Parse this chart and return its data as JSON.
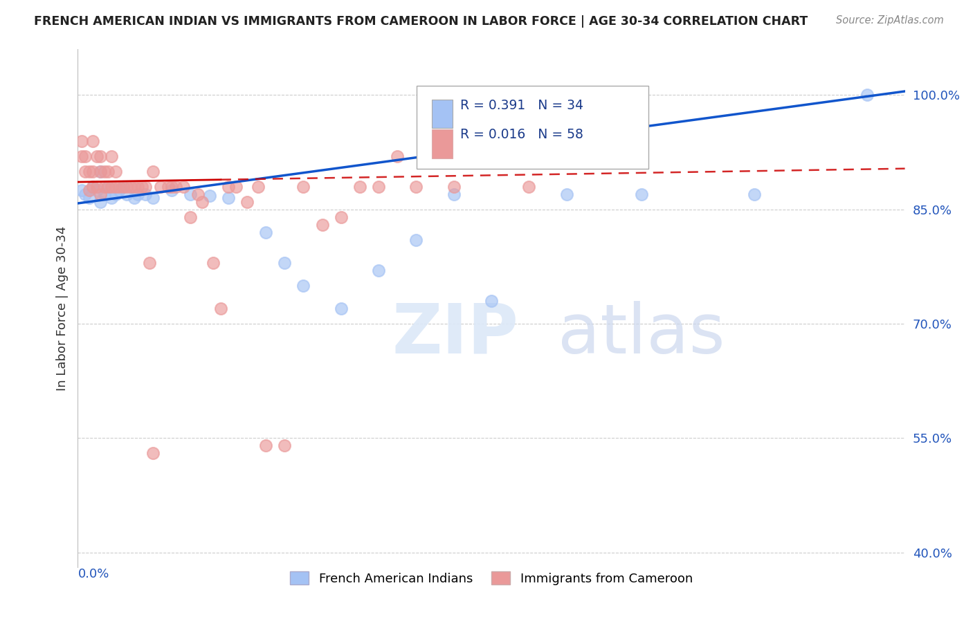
{
  "title": "FRENCH AMERICAN INDIAN VS IMMIGRANTS FROM CAMEROON IN LABOR FORCE | AGE 30-34 CORRELATION CHART",
  "source": "Source: ZipAtlas.com",
  "ylabel": "In Labor Force | Age 30-34",
  "xlim": [
    0.0,
    0.22
  ],
  "ylim": [
    0.38,
    1.06
  ],
  "yticks": [
    0.4,
    0.55,
    0.7,
    0.85,
    1.0
  ],
  "yticklabels": [
    "40.0%",
    "55.0%",
    "70.0%",
    "85.0%",
    "100.0%"
  ],
  "blue_R": "0.391",
  "blue_N": "34",
  "pink_R": "0.016",
  "pink_N": "58",
  "legend_label_blue": "French American Indians",
  "legend_label_pink": "Immigrants from Cameroon",
  "blue_color": "#a4c2f4",
  "pink_color": "#ea9999",
  "blue_line_color": "#1155cc",
  "pink_line_color": "#cc0000",
  "blue_x": [
    0.001,
    0.002,
    0.003,
    0.004,
    0.005,
    0.006,
    0.006,
    0.007,
    0.008,
    0.009,
    0.01,
    0.011,
    0.012,
    0.013,
    0.015,
    0.016,
    0.018,
    0.02,
    0.025,
    0.03,
    0.035,
    0.04,
    0.05,
    0.055,
    0.06,
    0.07,
    0.08,
    0.09,
    0.1,
    0.11,
    0.13,
    0.15,
    0.18,
    0.21
  ],
  "blue_y": [
    0.875,
    0.87,
    0.865,
    0.88,
    0.875,
    0.86,
    0.9,
    0.87,
    0.88,
    0.865,
    0.87,
    0.875,
    0.88,
    0.87,
    0.865,
    0.87,
    0.87,
    0.865,
    0.875,
    0.87,
    0.868,
    0.865,
    0.82,
    0.78,
    0.75,
    0.72,
    0.77,
    0.81,
    0.87,
    0.73,
    0.87,
    0.87,
    0.87,
    1.0
  ],
  "pink_x": [
    0.001,
    0.001,
    0.002,
    0.002,
    0.003,
    0.003,
    0.004,
    0.004,
    0.004,
    0.005,
    0.005,
    0.006,
    0.006,
    0.006,
    0.007,
    0.007,
    0.008,
    0.008,
    0.009,
    0.009,
    0.01,
    0.01,
    0.011,
    0.012,
    0.013,
    0.014,
    0.015,
    0.016,
    0.017,
    0.018,
    0.019,
    0.02,
    0.022,
    0.024,
    0.026,
    0.028,
    0.03,
    0.033,
    0.036,
    0.04,
    0.045,
    0.05,
    0.06,
    0.07,
    0.08,
    0.09,
    0.1,
    0.12,
    0.02,
    0.025,
    0.032,
    0.038,
    0.042,
    0.048,
    0.055,
    0.065,
    0.075,
    0.085
  ],
  "pink_y": [
    0.92,
    0.94,
    0.9,
    0.92,
    0.875,
    0.9,
    0.88,
    0.9,
    0.94,
    0.88,
    0.92,
    0.87,
    0.9,
    0.92,
    0.88,
    0.9,
    0.88,
    0.9,
    0.88,
    0.92,
    0.88,
    0.9,
    0.88,
    0.88,
    0.88,
    0.88,
    0.88,
    0.88,
    0.88,
    0.88,
    0.78,
    0.9,
    0.88,
    0.88,
    0.88,
    0.88,
    0.84,
    0.86,
    0.78,
    0.88,
    0.86,
    0.54,
    0.88,
    0.84,
    0.88,
    0.88,
    0.88,
    0.88,
    0.53,
    0.88,
    0.87,
    0.72,
    0.88,
    0.88,
    0.54,
    0.83,
    0.88,
    0.92
  ]
}
